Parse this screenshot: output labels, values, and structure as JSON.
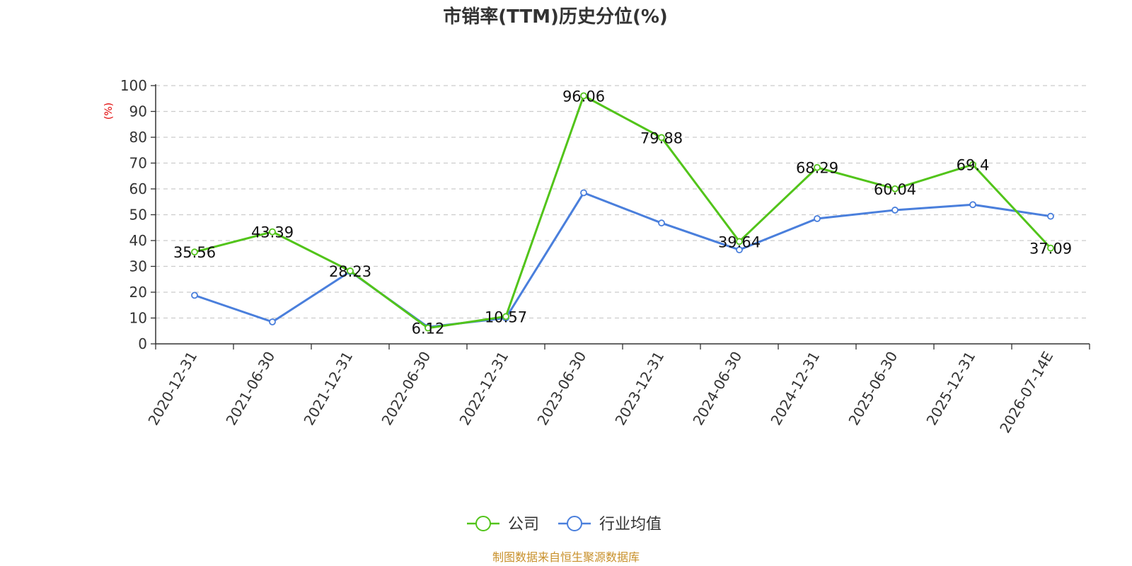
{
  "chart_data": {
    "type": "line",
    "title": "市销率(TTM)历史分位(%)",
    "ylabel": "(%)",
    "ylim": [
      0,
      100
    ],
    "yticks": [
      0,
      10,
      20,
      30,
      40,
      50,
      60,
      70,
      80,
      90,
      100
    ],
    "grid": true,
    "categories": [
      "2020-12-31",
      "2021-06-30",
      "2021-12-31",
      "2022-06-30",
      "2022-12-31",
      "2023-06-30",
      "2023-12-31",
      "2024-06-30",
      "2024-12-31",
      "2025-06-30",
      "2025-12-31",
      "2026-07-14E"
    ],
    "series": [
      {
        "name": "公司",
        "color": "#52c41a",
        "values": [
          35.56,
          43.39,
          28.23,
          6.12,
          10.57,
          96.06,
          79.88,
          39.64,
          68.29,
          60.04,
          69.4,
          37.09
        ],
        "labels": [
          "35.56",
          "43.39",
          "28.23",
          "6.12",
          "10.57",
          "96.06",
          "79.88",
          "39.64",
          "68.29",
          "60.04",
          "69.4",
          "37.09"
        ]
      },
      {
        "name": "行业均值",
        "color": "#4a7fdc",
        "values": [
          18.8,
          8.5,
          28.0,
          6.5,
          10.0,
          58.5,
          46.8,
          36.4,
          48.5,
          51.8,
          53.9,
          49.4
        ]
      }
    ],
    "legend_position": "bottom-center",
    "source": "制图数据来自恒生聚源数据库"
  }
}
